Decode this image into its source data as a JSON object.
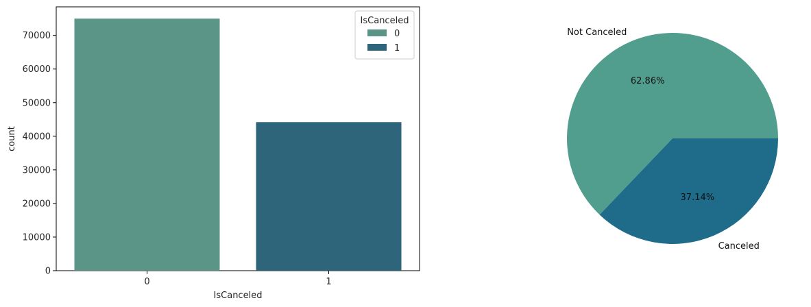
{
  "chart_data": [
    {
      "type": "bar",
      "xlabel": "IsCanceled",
      "ylabel": "count",
      "categories": [
        "0",
        "1"
      ],
      "series": [
        {
          "name": "0",
          "values": [
            75000,
            null
          ]
        },
        {
          "name": "1",
          "values": [
            null,
            44200
          ]
        }
      ],
      "ylim": [
        0,
        78500
      ],
      "yticks": [
        0,
        10000,
        20000,
        30000,
        40000,
        50000,
        60000,
        70000
      ],
      "grid": false,
      "legend": {
        "title": "IsCanceled",
        "placement": "top-right",
        "entries": [
          "0",
          "1"
        ]
      },
      "colors": [
        "#5b9588",
        "#2e657a"
      ]
    },
    {
      "type": "pie",
      "labels": [
        "Not Canceled",
        "Canceled"
      ],
      "values": [
        62.86,
        37.14
      ],
      "pct_labels": [
        "62.86%",
        "37.14%"
      ],
      "colors": [
        "#519e8e",
        "#1f6b8a"
      ]
    }
  ]
}
